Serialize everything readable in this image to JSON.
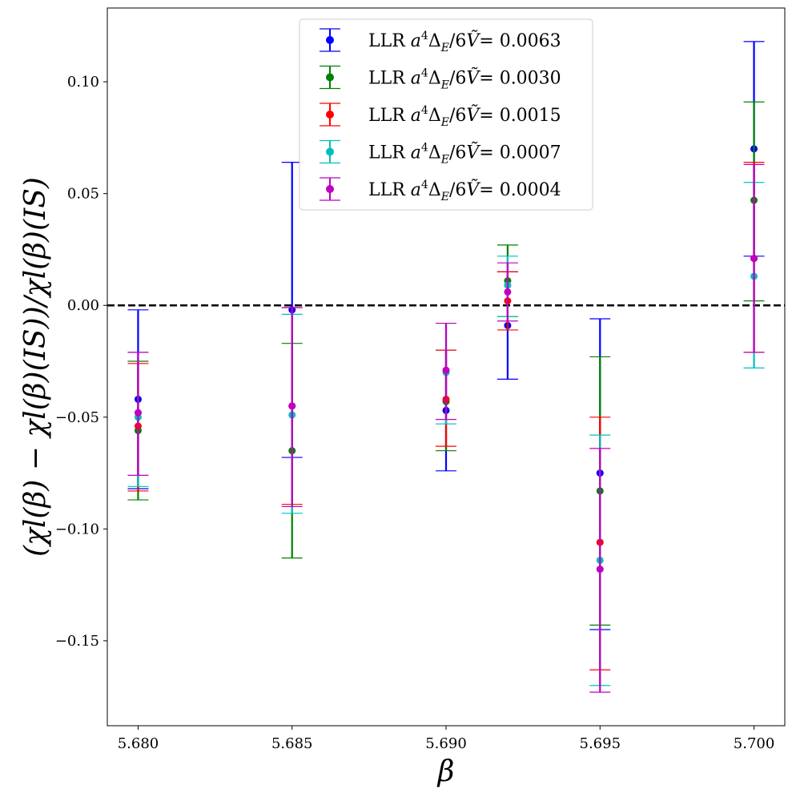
{
  "chart_data": {
    "type": "errorbar",
    "xlabel": "β",
    "ylabel": "(χl(β) − χl(β)(IS))/χl(β)(IS)",
    "xlim": [
      5.679,
      5.701
    ],
    "ylim": [
      -0.188,
      0.133
    ],
    "x_ticks": [
      5.68,
      5.685,
      5.69,
      5.695,
      5.7
    ],
    "x_tick_labels": [
      "5.680",
      "5.685",
      "5.690",
      "5.695",
      "5.700"
    ],
    "y_ticks": [
      0.1,
      0.05,
      0.0,
      -0.05,
      -0.1,
      -0.15
    ],
    "y_tick_labels": [
      "0.10",
      "0.05",
      "0.00",
      "−0.05",
      "−0.10",
      "−0.15"
    ],
    "reference_line": {
      "y": 0.0,
      "style": "dashed",
      "color": "#000000"
    },
    "legend": {
      "location": "upper-center"
    },
    "series": [
      {
        "name": "LLR a⁴ΔE/6Ṽ= 0.0063",
        "legend_prefix": "LLR",
        "legend_value": "= 0.0063",
        "color": "#0000ff",
        "x": [
          5.68,
          5.685,
          5.69,
          5.692,
          5.695,
          5.7
        ],
        "y": [
          -0.042,
          -0.002,
          -0.047,
          -0.009,
          -0.075,
          0.07
        ],
        "err_low": [
          -0.082,
          -0.068,
          -0.074,
          -0.033,
          -0.145,
          0.022
        ],
        "err_high": [
          -0.002,
          0.064,
          -0.02,
          0.015,
          -0.006,
          0.118
        ]
      },
      {
        "name": "LLR a⁴ΔE/6Ṽ= 0.0030",
        "legend_prefix": "LLR",
        "legend_value": "= 0.0030",
        "color": "#008000",
        "x": [
          5.68,
          5.685,
          5.69,
          5.692,
          5.695,
          5.7
        ],
        "y": [
          -0.056,
          -0.065,
          -0.043,
          0.011,
          -0.083,
          0.047
        ],
        "err_low": [
          -0.087,
          -0.113,
          -0.065,
          -0.005,
          -0.143,
          0.002
        ],
        "err_high": [
          -0.025,
          -0.017,
          -0.02,
          0.027,
          -0.023,
          0.091
        ]
      },
      {
        "name": "LLR a⁴ΔE/6Ṽ= 0.0015",
        "legend_prefix": "LLR",
        "legend_value": "= 0.0015",
        "color": "#ff0000",
        "x": [
          5.68,
          5.685,
          5.69,
          5.692,
          5.695,
          5.7
        ],
        "y": [
          -0.054,
          -0.045,
          -0.042,
          0.002,
          -0.106,
          0.021
        ],
        "err_low": [
          -0.083,
          -0.089,
          -0.063,
          -0.011,
          -0.163,
          -0.021
        ],
        "err_high": [
          -0.026,
          -0.001,
          -0.02,
          0.015,
          -0.05,
          0.064
        ]
      },
      {
        "name": "LLR a⁴ΔE/6Ṽ= 0.0007",
        "legend_prefix": "LLR",
        "legend_value": "= 0.0007",
        "color": "#00bfbf",
        "x": [
          5.68,
          5.685,
          5.69,
          5.692,
          5.695,
          5.7
        ],
        "y": [
          -0.05,
          -0.049,
          -0.03,
          0.009,
          -0.114,
          0.013
        ],
        "err_low": [
          -0.081,
          -0.093,
          -0.053,
          -0.005,
          -0.17,
          -0.028
        ],
        "err_high": [
          -0.021,
          -0.004,
          -0.008,
          0.022,
          -0.058,
          0.055
        ]
      },
      {
        "name": "LLR a⁴ΔE/6Ṽ= 0.0004",
        "legend_prefix": "LLR",
        "legend_value": "= 0.0004",
        "color": "#bf00bf",
        "x": [
          5.68,
          5.685,
          5.69,
          5.692,
          5.695,
          5.7
        ],
        "y": [
          -0.048,
          -0.045,
          -0.029,
          0.006,
          -0.118,
          0.021
        ],
        "err_low": [
          -0.076,
          -0.09,
          -0.051,
          -0.007,
          -0.173,
          -0.021
        ],
        "err_high": [
          -0.021,
          -0.001,
          -0.008,
          0.019,
          -0.064,
          0.063
        ]
      }
    ]
  }
}
